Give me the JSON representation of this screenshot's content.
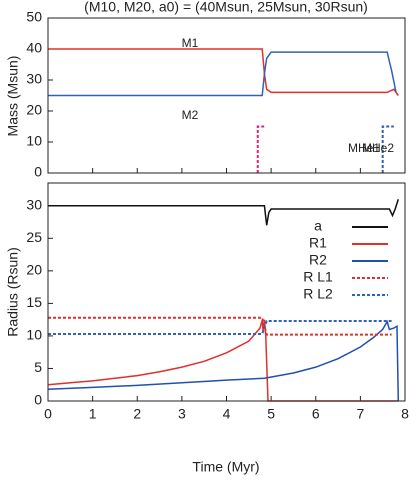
{
  "chart_data": [
    {
      "type": "line",
      "title": "(M10, M20, a0) = (40Msun, 25Msun, 30Rsun)",
      "y_label": "Mass (Msun)",
      "xlim": [
        0,
        8
      ],
      "xticks": [
        0,
        1,
        2,
        3,
        4,
        5,
        6,
        7,
        8
      ],
      "ylim": [
        0,
        50
      ],
      "yticks": [
        0,
        10,
        20,
        30,
        40,
        50
      ],
      "series": [
        {
          "name": "M1",
          "color": "#e0302a",
          "dashed": false,
          "x": [
            0,
            4.8,
            4.85,
            4.9,
            5.0,
            7.6,
            7.75,
            7.85
          ],
          "values": [
            40,
            40,
            32,
            27,
            26,
            26,
            27,
            25
          ]
        },
        {
          "name": "M2",
          "color": "#3060c0",
          "dashed": false,
          "x": [
            0,
            4.8,
            4.85,
            4.9,
            5.0,
            7.6,
            7.7,
            7.8
          ],
          "values": [
            25,
            25,
            32,
            37,
            39,
            39,
            33,
            26
          ]
        },
        {
          "name": "MHe1",
          "color": "#e0207a",
          "dashed": true,
          "x": [
            4.7,
            4.7,
            4.85
          ],
          "values": [
            0,
            15,
            15
          ]
        },
        {
          "name": "MHe2",
          "color": "#3060c0",
          "dashed": true,
          "x": [
            7.5,
            7.5,
            7.75
          ],
          "values": [
            0,
            15,
            15
          ]
        }
      ]
    },
    {
      "type": "line",
      "x_label": "Time (Myr)",
      "y_label": "Radius (Rsun)",
      "legend": "upper right",
      "xlim": [
        0,
        8
      ],
      "xticks": [
        0,
        1,
        2,
        3,
        4,
        5,
        6,
        7,
        8
      ],
      "ylim": [
        0,
        33.5
      ],
      "yticks": [
        0,
        5,
        10,
        15,
        20,
        25,
        30
      ],
      "series": [
        {
          "name": "a",
          "color": "#111111",
          "dashed": false,
          "x": [
            0,
            4.85,
            4.9,
            4.95,
            5.0,
            7.65,
            7.72,
            7.78,
            7.85
          ],
          "values": [
            30,
            30,
            27,
            29,
            29.5,
            29.5,
            28.5,
            29.5,
            31
          ]
        },
        {
          "name": "R1",
          "color": "#e0302a",
          "dashed": false,
          "x": [
            0,
            0.5,
            1,
            1.5,
            2,
            2.5,
            3,
            3.5,
            4,
            4.5,
            4.7,
            4.75,
            4.8,
            4.82,
            4.85,
            4.88,
            4.93,
            7.85
          ],
          "values": [
            2.5,
            2.8,
            3.1,
            3.5,
            3.9,
            4.5,
            5.2,
            6.1,
            7.4,
            9.2,
            10.8,
            11.2,
            12.4,
            10.8,
            12.5,
            10,
            0,
            0
          ]
        },
        {
          "name": "R2",
          "color": "#2050b0",
          "dashed": false,
          "x": [
            0,
            1,
            2,
            3,
            4,
            4.85,
            5.5,
            6,
            6.5,
            7,
            7.3,
            7.5,
            7.6,
            7.65,
            7.75,
            7.82,
            7.85
          ],
          "values": [
            1.8,
            2.1,
            2.4,
            2.8,
            3.2,
            3.5,
            4.3,
            5.2,
            6.5,
            8.3,
            9.8,
            11,
            12.2,
            11,
            11.2,
            11.5,
            0
          ]
        },
        {
          "name": "R L1",
          "color": "#e0302a",
          "dashed": true,
          "x": [
            0,
            4.8,
            4.9,
            7.7
          ],
          "values": [
            12.8,
            12.8,
            10.2,
            10.2
          ]
        },
        {
          "name": "R L2",
          "color": "#3060c0",
          "dashed": true,
          "x": [
            0,
            4.8,
            4.9,
            7.7
          ],
          "values": [
            10.3,
            10.3,
            12.3,
            12.3
          ]
        }
      ]
    }
  ]
}
